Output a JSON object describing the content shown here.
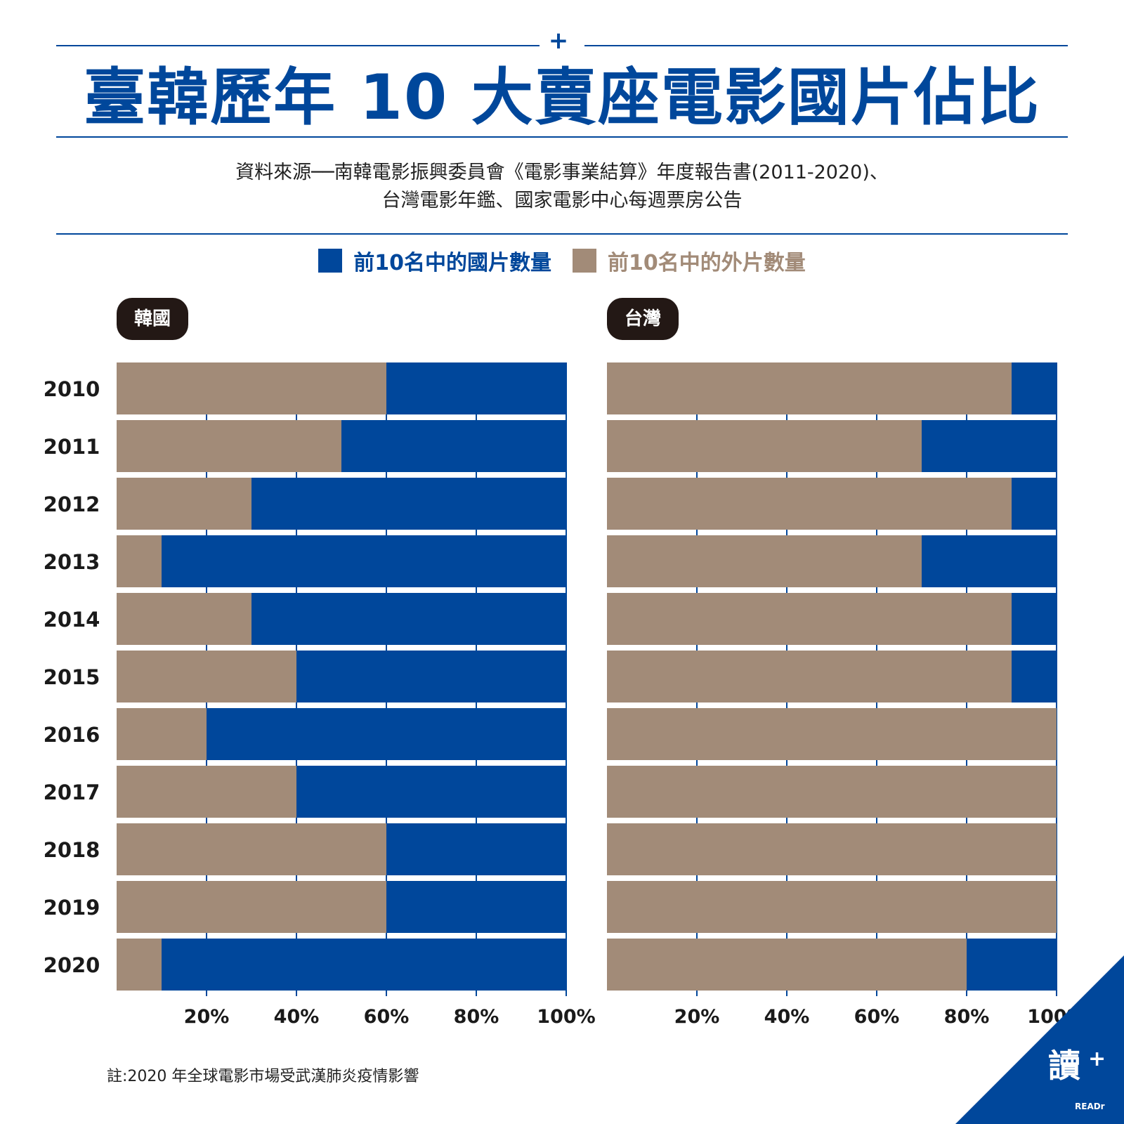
{
  "header": {
    "title": "臺韓歷年 10 大賣座電影國片佔比",
    "plus_symbol": "+",
    "source_line1": "資料來源──南韓電影振興委員會《電影事業結算》年度報告書(2011-2020)、",
    "source_line2": "台灣電影年鑑、國家電影中心每週票房公告"
  },
  "legend": {
    "domestic_label": "前10名中的國片數量",
    "foreign_label": "前10名中的外片數量"
  },
  "colors": {
    "domestic": "#00479b",
    "foreign": "#a28b78",
    "accent": "#00479b",
    "tag_bg": "#231815"
  },
  "chart_data": [
    {
      "type": "bar",
      "orientation": "horizontal",
      "stacked": true,
      "panel_label": "韓國",
      "categories": [
        "2010",
        "2011",
        "2012",
        "2013",
        "2014",
        "2015",
        "2016",
        "2017",
        "2018",
        "2019",
        "2020"
      ],
      "series": [
        {
          "name": "前10名中的外片數量",
          "values": [
            6,
            5,
            3,
            1,
            3,
            4,
            2,
            4,
            6,
            6,
            1
          ]
        },
        {
          "name": "前10名中的國片數量",
          "values": [
            4,
            5,
            7,
            9,
            7,
            6,
            8,
            6,
            4,
            4,
            9
          ]
        }
      ],
      "x_ticks": [
        "20%",
        "40%",
        "60%",
        "80%",
        "100%"
      ],
      "xlim": [
        0,
        100
      ],
      "grid": true
    },
    {
      "type": "bar",
      "orientation": "horizontal",
      "stacked": true,
      "panel_label": "台灣",
      "categories": [
        "2010",
        "2011",
        "2012",
        "2013",
        "2014",
        "2015",
        "2016",
        "2017",
        "2018",
        "2019",
        "2020"
      ],
      "series": [
        {
          "name": "前10名中的外片數量",
          "values": [
            9,
            7,
            9,
            7,
            9,
            9,
            10,
            10,
            10,
            10,
            8
          ]
        },
        {
          "name": "前10名中的國片數量",
          "values": [
            1,
            3,
            1,
            3,
            1,
            1,
            0,
            0,
            0,
            0,
            2
          ]
        }
      ],
      "x_ticks": [
        "20%",
        "40%",
        "60%",
        "80%",
        "100%"
      ],
      "xlim": [
        0,
        100
      ],
      "grid": true
    }
  ],
  "footnote": "註:2020 年全球電影市場受武漢肺炎疫情影響",
  "logo": {
    "main": "讀",
    "plus": "+",
    "sub": "READr"
  }
}
